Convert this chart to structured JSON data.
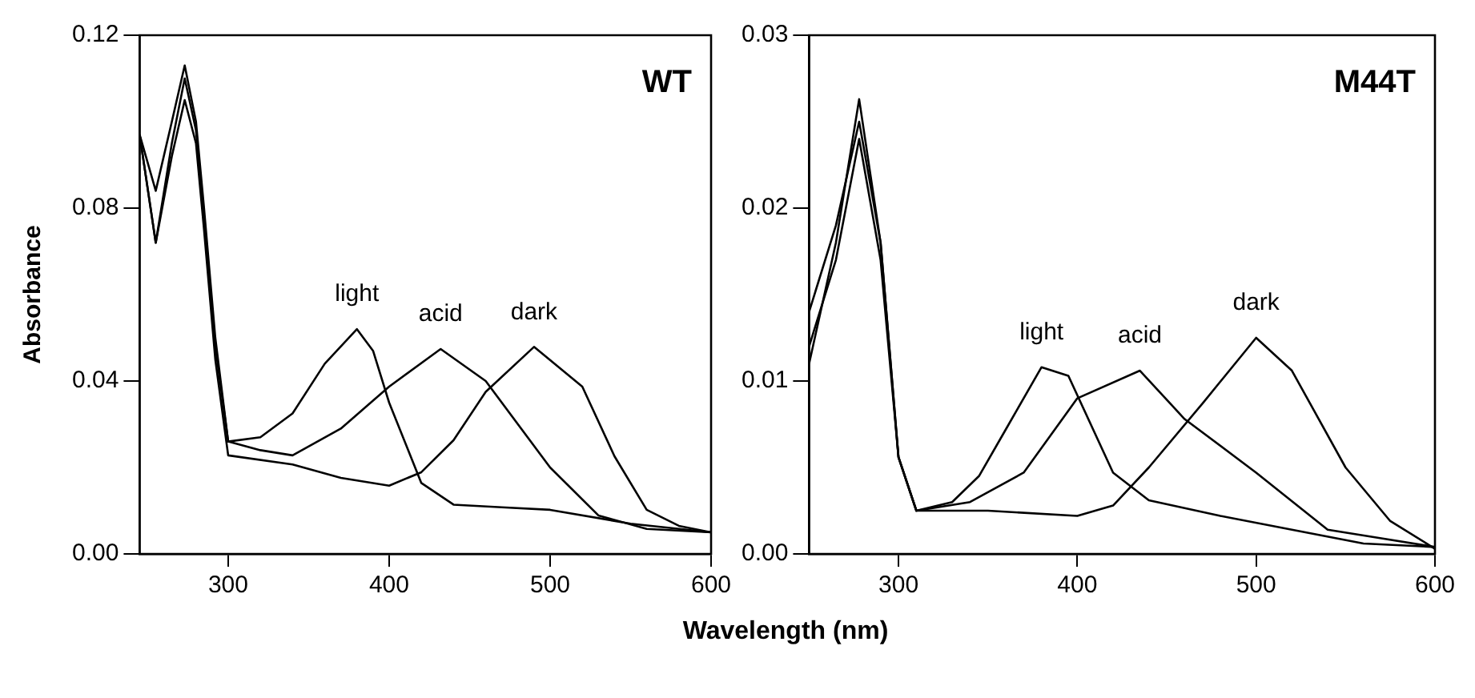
{
  "chart_data": [
    {
      "type": "line",
      "title": "WT",
      "ylabel": "Absorbance",
      "xlabel": "Wavelength (nm)",
      "xlim": [
        245,
        600
      ],
      "xticks": [
        300,
        400,
        500,
        600
      ],
      "ylim": [
        0,
        0.12
      ],
      "yticks": [
        {
          "value": 0,
          "label": "0.00"
        },
        0.04,
        0.08,
        0.12
      ],
      "grid": false,
      "legend": false,
      "marker": "none",
      "line_style": "solid",
      "series": [
        {
          "name": "light",
          "color": "#000000",
          "x": [
            245,
            255,
            265,
            273,
            280,
            285,
            292,
            300,
            320,
            340,
            360,
            380,
            390,
            400,
            420,
            440,
            470,
            500,
            550,
            600
          ],
          "values": [
            0.097,
            0.084,
            0.1,
            0.113,
            0.1,
            0.08,
            0.05,
            0.026,
            0.027,
            0.0325,
            0.044,
            0.052,
            0.047,
            0.035,
            0.0164,
            0.0114,
            0.0108,
            0.0102,
            0.007,
            0.005
          ]
        },
        {
          "name": "acid",
          "color": "#000000",
          "x": [
            245,
            255,
            265,
            273,
            280,
            285,
            292,
            300,
            320,
            340,
            370,
            400,
            432,
            460,
            500,
            530,
            560,
            600
          ],
          "values": [
            0.097,
            0.072,
            0.095,
            0.11,
            0.098,
            0.078,
            0.048,
            0.026,
            0.024,
            0.0228,
            0.029,
            0.0387,
            0.0474,
            0.04,
            0.02,
            0.0089,
            0.0058,
            0.005
          ]
        },
        {
          "name": "dark",
          "color": "#000000",
          "x": [
            245,
            255,
            265,
            273,
            280,
            285,
            292,
            300,
            340,
            370,
            400,
            420,
            440,
            460,
            490,
            520,
            540,
            560,
            580,
            600
          ],
          "values": [
            0.097,
            0.072,
            0.092,
            0.105,
            0.095,
            0.075,
            0.045,
            0.0228,
            0.0207,
            0.0176,
            0.0158,
            0.0189,
            0.0263,
            0.0375,
            0.0479,
            0.0387,
            0.0226,
            0.0102,
            0.0065,
            0.005
          ]
        }
      ]
    },
    {
      "type": "line",
      "title": "M44T",
      "xlim": [
        250,
        600
      ],
      "xticks": [
        300,
        400,
        500,
        600
      ],
      "ylim": [
        0,
        0.03
      ],
      "yticks": [
        {
          "value": 0,
          "label": "0.00"
        },
        0.01,
        0.02,
        0.03
      ],
      "grid": false,
      "legend": false,
      "marker": "none",
      "line_style": "solid",
      "series": [
        {
          "name": "light",
          "color": "#000000",
          "x": [
            250,
            265,
            278,
            290,
            300,
            310,
            330,
            345,
            360,
            380,
            395,
            420,
            440,
            480,
            520,
            560,
            600
          ],
          "values": [
            0.011,
            0.018,
            0.0263,
            0.018,
            0.0056,
            0.0025,
            0.003,
            0.0045,
            0.0072,
            0.0108,
            0.0103,
            0.0047,
            0.0031,
            0.0022,
            0.0014,
            0.0006,
            0.0004
          ]
        },
        {
          "name": "acid",
          "color": "#000000",
          "x": [
            250,
            265,
            278,
            290,
            300,
            310,
            340,
            370,
            400,
            435,
            460,
            500,
            540,
            570,
            600
          ],
          "values": [
            0.014,
            0.019,
            0.025,
            0.018,
            0.0056,
            0.0025,
            0.003,
            0.0047,
            0.009,
            0.0106,
            0.0078,
            0.0047,
            0.0014,
            0.0009,
            0.0004
          ]
        },
        {
          "name": "dark",
          "color": "#000000",
          "x": [
            250,
            265,
            278,
            290,
            300,
            310,
            350,
            400,
            420,
            440,
            470,
            500,
            520,
            550,
            575,
            600
          ],
          "values": [
            0.012,
            0.017,
            0.024,
            0.017,
            0.0056,
            0.0025,
            0.0025,
            0.0022,
            0.0028,
            0.005,
            0.0087,
            0.0125,
            0.0106,
            0.005,
            0.0019,
            0.0003
          ]
        }
      ]
    }
  ]
}
